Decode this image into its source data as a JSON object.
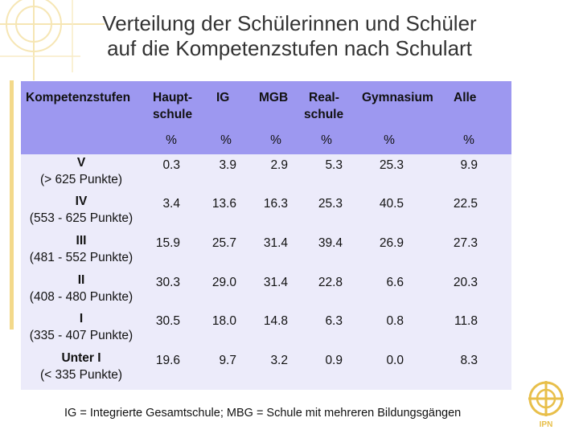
{
  "title": {
    "line1": "Verteilung der Schülerinnen und Schüler",
    "line2": "auf die Kompetenzstufen nach Schulart"
  },
  "table": {
    "headers": {
      "stage": "Kompetenzstufen",
      "hauptschule_l1": "Haupt-",
      "hauptschule_l2": "schule",
      "ig": "IG",
      "mgb": "MGB",
      "realschule_l1": "Real-",
      "realschule_l2": "schule",
      "gymnasium": "Gymnasium",
      "alle": "Alle"
    },
    "unit": "%",
    "rows": [
      {
        "level": "V",
        "range": "(> 625 Punkte)",
        "values": [
          "0.3",
          "3.9",
          "2.9",
          "5.3",
          "25.3",
          "9.9"
        ]
      },
      {
        "level": "IV",
        "range": "(553 - 625 Punkte)",
        "values": [
          "3.4",
          "13.6",
          "16.3",
          "25.3",
          "40.5",
          "22.5"
        ]
      },
      {
        "level": "III",
        "range": "(481 - 552 Punkte)",
        "values": [
          "15.9",
          "25.7",
          "31.4",
          "39.4",
          "26.9",
          "27.3"
        ]
      },
      {
        "level": "II",
        "range": "(408 - 480 Punkte)",
        "values": [
          "30.3",
          "29.0",
          "31.4",
          "22.8",
          "6.6",
          "20.3"
        ]
      },
      {
        "level": "I",
        "range": "(335 - 407 Punkte)",
        "values": [
          "30.5",
          "18.0",
          "14.8",
          "6.3",
          "0.8",
          "11.8"
        ]
      },
      {
        "level": "Unter I",
        "range": "(< 335 Punkte)",
        "values": [
          "19.6",
          "9.7",
          "3.2",
          "0.9",
          "0.0",
          "8.3"
        ]
      }
    ]
  },
  "footnote": "IG = Integrierte Gesamtschule; MBG = Schule mit mehreren Bildungsgängen",
  "logo_text": "IPN",
  "colors": {
    "header_bg": "#9d98f0",
    "body_bg": "#ecebfa",
    "accent_gold": "#e8bf4a"
  }
}
